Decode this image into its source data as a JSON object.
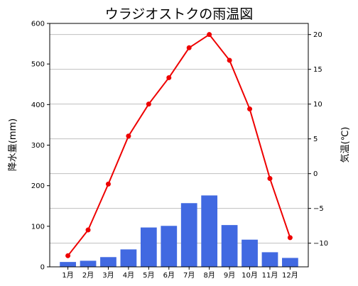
{
  "chart_data": {
    "type": "bar",
    "title": "ウラジオストクの雨温図",
    "categories": [
      "1月",
      "2月",
      "3月",
      "4月",
      "5月",
      "6月",
      "7月",
      "8月",
      "9月",
      "10月",
      "11月",
      "12月"
    ],
    "series": [
      {
        "kind": "bar",
        "axis": "left",
        "values": [
          12,
          15,
          24,
          43,
          97,
          101,
          157,
          176,
          103,
          67,
          36,
          22
        ]
      },
      {
        "kind": "line",
        "axis": "right",
        "values": [
          -11.8,
          -8.1,
          -1.5,
          5.4,
          10.0,
          13.8,
          18.1,
          20.0,
          16.3,
          9.3,
          -0.7,
          -9.2
        ]
      }
    ],
    "ylabel": "降水量(mm)",
    "y2label": "気温(℃)",
    "ylim": [
      0,
      600
    ],
    "y2lim": [
      -13.4,
      21.6
    ],
    "yticks": [
      0,
      100,
      200,
      300,
      400,
      500,
      600
    ],
    "y2ticks": [
      -10,
      -5,
      0,
      5,
      10,
      15,
      20
    ],
    "grid": "horizontal, right axis",
    "colors": {
      "bar": "#4169e1",
      "line": "#ee0000",
      "grid": "#bfbfbf"
    }
  }
}
